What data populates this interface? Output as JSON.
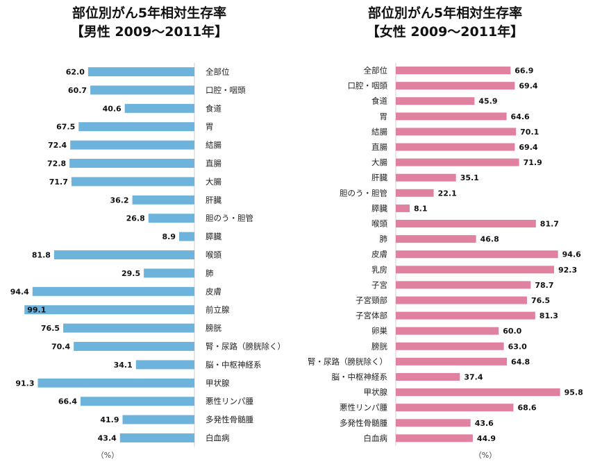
{
  "chart_data": [
    {
      "type": "bar",
      "orientation": "horizontal",
      "title": "部位別がん5年相対生存率",
      "subtitle": "【男性 2009～2011年】",
      "unit": "（%）",
      "color": "#6db3dc",
      "categories": [
        "全部位",
        "口腔・咽頭",
        "食道",
        "胃",
        "結腸",
        "直腸",
        "大腸",
        "肝臓",
        "胆のう・胆管",
        "膵臓",
        "喉頭",
        "肺",
        "皮膚",
        "前立腺",
        "膀胱",
        "腎・尿路（膀胱除く）",
        "脳・中枢神経系",
        "甲状腺",
        "悪性リンパ腫",
        "多発性骨髄腫",
        "白血病"
      ],
      "values": [
        62.0,
        60.7,
        40.6,
        67.5,
        72.4,
        72.8,
        71.7,
        36.2,
        26.8,
        8.9,
        81.8,
        29.5,
        94.4,
        99.1,
        76.5,
        70.4,
        34.1,
        91.3,
        66.4,
        41.9,
        43.4
      ],
      "value_labels": [
        "62.0",
        "60.7",
        "40.6",
        "67.5",
        "72.4",
        "72.8",
        "71.7",
        "36.2",
        "26.8",
        "8.9",
        "81.8",
        "29.5",
        "94.4",
        "99.1",
        "76.5",
        "70.4",
        "34.1",
        "91.3",
        "66.4",
        "41.9",
        "43.4"
      ],
      "xlim": [
        0,
        100
      ]
    },
    {
      "type": "bar",
      "orientation": "horizontal",
      "title": "部位別がん5年相対生存率",
      "subtitle": "【女性 2009～2011年】",
      "unit": "（%）",
      "color": "#e0829f",
      "categories": [
        "全部位",
        "口腔・咽頭",
        "食道",
        "胃",
        "結腸",
        "直腸",
        "大腸",
        "肝臓",
        "胆のう・胆管",
        "膵臓",
        "喉頭",
        "肺",
        "皮膚",
        "乳房",
        "子宮",
        "子宮頸部",
        "子宮体部",
        "卵巣",
        "膀胱",
        "腎・尿路（膀胱除く）",
        "脳・中枢神経系",
        "甲状腺",
        "悪性リンパ腫",
        "多発性骨髄腫",
        "白血病"
      ],
      "values": [
        66.9,
        69.4,
        45.9,
        64.6,
        70.1,
        69.4,
        71.9,
        35.1,
        22.1,
        8.1,
        81.7,
        46.8,
        94.6,
        92.3,
        78.7,
        76.5,
        81.3,
        60.0,
        63.0,
        64.8,
        37.4,
        95.8,
        68.6,
        43.6,
        44.9
      ],
      "value_labels": [
        "66.9",
        "69.4",
        "45.9",
        "64.6",
        "70.1",
        "69.4",
        "71.9",
        "35.1",
        "22.1",
        "8.1",
        "81.7",
        "46.8",
        "94.6",
        "92.3",
        "78.7",
        "76.5",
        "81.3",
        "60.0",
        "63.0",
        "64.8",
        "37.4",
        "95.8",
        "68.6",
        "43.6",
        "44.9"
      ],
      "xlim": [
        0,
        100
      ]
    }
  ]
}
